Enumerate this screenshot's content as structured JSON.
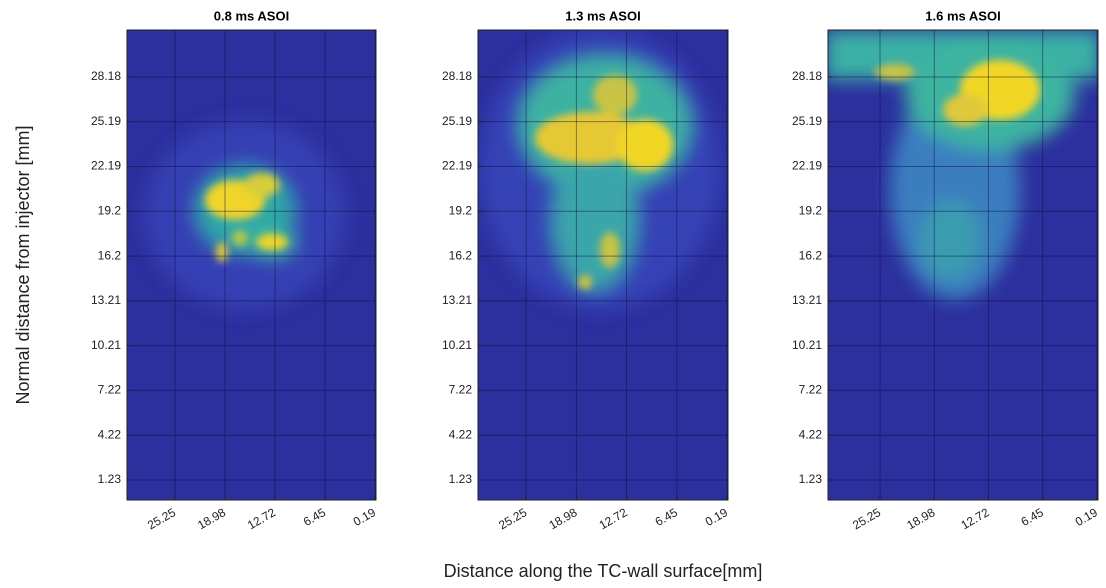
{
  "chart_data": [
    {
      "type": "image",
      "title": "0.8 ms ASOI",
      "ylabel": "Normal distance from injector [mm]",
      "xlim": [
        31.26,
        0.06
      ],
      "xticks": [
        25.25,
        18.98,
        12.72,
        6.45,
        0.19
      ],
      "ylim": [
        -0.11,
        31.32
      ],
      "yticks": [
        1.23,
        4.22,
        7.22,
        10.21,
        13.21,
        16.2,
        19.2,
        22.19,
        25.19,
        28.18
      ],
      "grid": true
    },
    {
      "type": "image",
      "title": "1.3 ms ASOI",
      "xlabel": "Distance along the TC-wall surface[mm]",
      "xlim": [
        31.26,
        0.06
      ],
      "xticks": [
        25.25,
        18.98,
        12.72,
        6.45,
        0.19
      ],
      "ylim": [
        -0.11,
        31.32
      ],
      "yticks": [
        1.23,
        4.22,
        7.22,
        10.21,
        13.21,
        16.2,
        19.2,
        22.19,
        25.19,
        28.18
      ],
      "grid": true
    },
    {
      "type": "image",
      "title": "1.6 ms ASOI",
      "xlim": [
        31.26,
        0.06
      ],
      "xticks": [
        25.25,
        18.98,
        12.72,
        6.45,
        0.19
      ],
      "ylim": [
        -0.11,
        31.32
      ],
      "yticks": [
        1.23,
        4.22,
        7.22,
        10.21,
        13.21,
        16.2,
        19.2,
        22.19,
        25.19,
        28.18
      ],
      "grid": true
    }
  ]
}
